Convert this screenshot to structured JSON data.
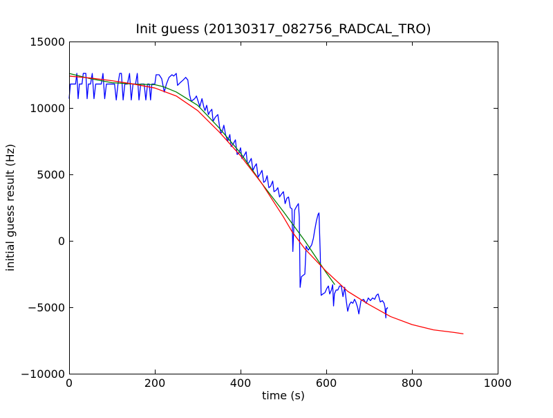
{
  "chart_data": {
    "type": "line",
    "title": "Init guess (20130317_082756_RADCAL_TRO)",
    "xlabel": "time (s)",
    "ylabel": "initial guess result (Hz)",
    "xlim": [
      0,
      1000
    ],
    "ylim": [
      -10000,
      15000
    ],
    "xticks": [
      0,
      200,
      400,
      600,
      800,
      1000
    ],
    "yticks": [
      -10000,
      -5000,
      0,
      5000,
      10000,
      15000
    ],
    "xtick_labels": [
      "0",
      "200",
      "400",
      "600",
      "800",
      "1000"
    ],
    "ytick_labels": [
      "−10000",
      "−5000",
      "0",
      "5000",
      "10000",
      "15000"
    ],
    "grid": false,
    "legend": "none",
    "series": [
      {
        "color": "#0000ff",
        "points": [
          [
            0,
            10700
          ],
          [
            3,
            11800
          ],
          [
            10,
            11800
          ],
          [
            15,
            11800
          ],
          [
            18,
            12600
          ],
          [
            21,
            10700
          ],
          [
            24,
            11800
          ],
          [
            30,
            11800
          ],
          [
            33,
            12600
          ],
          [
            36,
            12600
          ],
          [
            39,
            12600
          ],
          [
            42,
            10700
          ],
          [
            45,
            11800
          ],
          [
            50,
            11800
          ],
          [
            54,
            12600
          ],
          [
            58,
            10700
          ],
          [
            62,
            11800
          ],
          [
            70,
            11800
          ],
          [
            75,
            11800
          ],
          [
            79,
            12600
          ],
          [
            83,
            10700
          ],
          [
            87,
            11800
          ],
          [
            95,
            11800
          ],
          [
            100,
            11800
          ],
          [
            106,
            11800
          ],
          [
            110,
            10600
          ],
          [
            114,
            11800
          ],
          [
            118,
            12600
          ],
          [
            122,
            12600
          ],
          [
            126,
            10600
          ],
          [
            130,
            11800
          ],
          [
            136,
            11800
          ],
          [
            141,
            12600
          ],
          [
            145,
            10600
          ],
          [
            149,
            11800
          ],
          [
            155,
            11800
          ],
          [
            159,
            12600
          ],
          [
            163,
            10600
          ],
          [
            167,
            11800
          ],
          [
            175,
            11800
          ],
          [
            179,
            10600
          ],
          [
            183,
            11800
          ],
          [
            187,
            11800
          ],
          [
            190,
            10600
          ],
          [
            193,
            11800
          ],
          [
            200,
            11800
          ],
          [
            203,
            12500
          ],
          [
            210,
            12500
          ],
          [
            216,
            12200
          ],
          [
            222,
            11200
          ],
          [
            227,
            11800
          ],
          [
            233,
            12300
          ],
          [
            240,
            12500
          ],
          [
            244,
            12400
          ],
          [
            250,
            12600
          ],
          [
            253,
            11700
          ],
          [
            259,
            11900
          ],
          [
            266,
            12100
          ],
          [
            272,
            12300
          ],
          [
            277,
            12100
          ],
          [
            281,
            11000
          ],
          [
            285,
            10500
          ],
          [
            293,
            10700
          ],
          [
            297,
            10900
          ],
          [
            300,
            10600
          ],
          [
            305,
            10100
          ],
          [
            310,
            10700
          ],
          [
            314,
            10100
          ],
          [
            317,
            9800
          ],
          [
            321,
            10200
          ],
          [
            325,
            9500
          ],
          [
            328,
            9700
          ],
          [
            333,
            9900
          ],
          [
            336,
            9000
          ],
          [
            341,
            9300
          ],
          [
            347,
            9500
          ],
          [
            351,
            8600
          ],
          [
            354,
            8100
          ],
          [
            357,
            8200
          ],
          [
            361,
            8700
          ],
          [
            365,
            8000
          ],
          [
            367,
            7800
          ],
          [
            370,
            7500
          ],
          [
            375,
            8000
          ],
          [
            378,
            7100
          ],
          [
            383,
            7300
          ],
          [
            388,
            7600
          ],
          [
            392,
            6500
          ],
          [
            396,
            6600
          ],
          [
            400,
            7000
          ],
          [
            403,
            6200
          ],
          [
            408,
            6400
          ],
          [
            413,
            6700
          ],
          [
            416,
            5800
          ],
          [
            420,
            5900
          ],
          [
            425,
            6200
          ],
          [
            429,
            5300
          ],
          [
            433,
            5600
          ],
          [
            437,
            5800
          ],
          [
            441,
            4800
          ],
          [
            445,
            5000
          ],
          [
            450,
            5300
          ],
          [
            454,
            4400
          ],
          [
            458,
            4500
          ],
          [
            462,
            4900
          ],
          [
            466,
            4000
          ],
          [
            470,
            4100
          ],
          [
            475,
            4500
          ],
          [
            478,
            3700
          ],
          [
            483,
            3800
          ],
          [
            487,
            4000
          ],
          [
            491,
            3300
          ],
          [
            495,
            3500
          ],
          [
            500,
            3700
          ],
          [
            504,
            2800
          ],
          [
            508,
            3200
          ],
          [
            512,
            3300
          ],
          [
            516,
            2500
          ],
          [
            520,
            2400
          ],
          [
            522,
            -800
          ],
          [
            526,
            2300
          ],
          [
            531,
            2600
          ],
          [
            535,
            2800
          ],
          [
            537,
            1800
          ],
          [
            539,
            -3500
          ],
          [
            542,
            -2700
          ],
          [
            546,
            -2600
          ],
          [
            550,
            -2500
          ],
          [
            553,
            -400
          ],
          [
            558,
            -700
          ],
          [
            562,
            -500
          ],
          [
            566,
            -300
          ],
          [
            570,
            200
          ],
          [
            573,
            800
          ],
          [
            577,
            1500
          ],
          [
            581,
            2000
          ],
          [
            583,
            2100
          ],
          [
            586,
            -1000
          ],
          [
            588,
            -4100
          ],
          [
            592,
            -4000
          ],
          [
            597,
            -3900
          ],
          [
            601,
            -3600
          ],
          [
            605,
            -3400
          ],
          [
            608,
            -4000
          ],
          [
            612,
            -3700
          ],
          [
            615,
            -3300
          ],
          [
            617,
            -4900
          ],
          [
            619,
            -4000
          ],
          [
            623,
            -3700
          ],
          [
            627,
            -3700
          ],
          [
            631,
            -3400
          ],
          [
            635,
            -3400
          ],
          [
            639,
            -4200
          ],
          [
            643,
            -3500
          ],
          [
            647,
            -4600
          ],
          [
            650,
            -5300
          ],
          [
            654,
            -4800
          ],
          [
            658,
            -4600
          ],
          [
            662,
            -4700
          ],
          [
            666,
            -4400
          ],
          [
            669,
            -4600
          ],
          [
            673,
            -5000
          ],
          [
            676,
            -5500
          ],
          [
            681,
            -4500
          ],
          [
            687,
            -4400
          ],
          [
            693,
            -4700
          ],
          [
            698,
            -4300
          ],
          [
            703,
            -4500
          ],
          [
            708,
            -4300
          ],
          [
            713,
            -4400
          ],
          [
            717,
            -4100
          ],
          [
            721,
            -4000
          ],
          [
            726,
            -4600
          ],
          [
            731,
            -4500
          ],
          [
            735,
            -4700
          ],
          [
            737,
            -5000
          ],
          [
            739,
            -5800
          ],
          [
            740,
            -5100
          ],
          [
            742,
            -5100
          ],
          [
            743,
            -5000
          ]
        ]
      },
      {
        "color": "#008000",
        "points": [
          [
            0,
            12600
          ],
          [
            50,
            12200
          ],
          [
            100,
            11900
          ],
          [
            150,
            11800
          ],
          [
            200,
            11750
          ],
          [
            220,
            11600
          ],
          [
            250,
            11200
          ],
          [
            300,
            10200
          ],
          [
            350,
            8500
          ],
          [
            400,
            6600
          ],
          [
            450,
            4300
          ],
          [
            500,
            2200
          ],
          [
            550,
            0
          ],
          [
            600,
            -2400
          ],
          [
            620,
            -3300
          ]
        ]
      },
      {
        "color": "#ff0000",
        "points": [
          [
            0,
            12400
          ],
          [
            50,
            12250
          ],
          [
            100,
            12050
          ],
          [
            150,
            11800
          ],
          [
            200,
            11500
          ],
          [
            250,
            10900
          ],
          [
            300,
            9800
          ],
          [
            350,
            8200
          ],
          [
            400,
            6400
          ],
          [
            450,
            4300
          ],
          [
            500,
            1800
          ],
          [
            520,
            700
          ],
          [
            550,
            -600
          ],
          [
            600,
            -2300
          ],
          [
            650,
            -3800
          ],
          [
            700,
            -4800
          ],
          [
            750,
            -5700
          ],
          [
            800,
            -6300
          ],
          [
            850,
            -6700
          ],
          [
            900,
            -6900
          ],
          [
            920,
            -7000
          ]
        ]
      }
    ]
  }
}
